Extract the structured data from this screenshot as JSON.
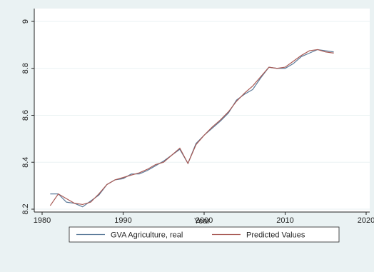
{
  "chart_data": {
    "type": "line",
    "x_label": "Year",
    "x": [
      1981,
      1982,
      1983,
      1984,
      1985,
      1986,
      1987,
      1988,
      1989,
      1990,
      1991,
      1992,
      1993,
      1994,
      1995,
      1996,
      1997,
      1998,
      1999,
      2000,
      2001,
      2002,
      2003,
      2004,
      2005,
      2006,
      2007,
      2008,
      2009,
      2010,
      2011,
      2012,
      2013,
      2014,
      2015,
      2016
    ],
    "series": [
      {
        "name": "GVA Agriculture, real",
        "color": "#5a7a99",
        "values": [
          8.265,
          8.265,
          8.23,
          8.225,
          8.21,
          8.235,
          8.26,
          8.305,
          8.325,
          8.33,
          8.35,
          8.35,
          8.365,
          8.385,
          8.405,
          8.43,
          8.455,
          8.395,
          8.48,
          8.515,
          8.545,
          8.575,
          8.61,
          8.665,
          8.69,
          8.71,
          8.76,
          8.805,
          8.8,
          8.8,
          8.82,
          8.85,
          8.865,
          8.88,
          8.875,
          8.87
        ]
      },
      {
        "name": "Predicted Values",
        "color": "#a85a55",
        "values": [
          8.215,
          8.265,
          8.245,
          8.225,
          8.22,
          8.23,
          8.265,
          8.305,
          8.325,
          8.335,
          8.345,
          8.355,
          8.37,
          8.39,
          8.4,
          8.43,
          8.46,
          8.395,
          8.475,
          8.515,
          8.55,
          8.58,
          8.615,
          8.66,
          8.695,
          8.725,
          8.765,
          8.805,
          8.8,
          8.805,
          8.83,
          8.855,
          8.875,
          8.88,
          8.87,
          8.865
        ]
      }
    ],
    "xlim": [
      1980,
      2020
    ],
    "xticks": [
      1980,
      1990,
      2000,
      2010,
      2020
    ],
    "ylim": [
      8.2,
      9
    ],
    "yticks": [
      8.2,
      8.4,
      8.6,
      8.8,
      9
    ],
    "grid": true,
    "legend": "bottom"
  }
}
